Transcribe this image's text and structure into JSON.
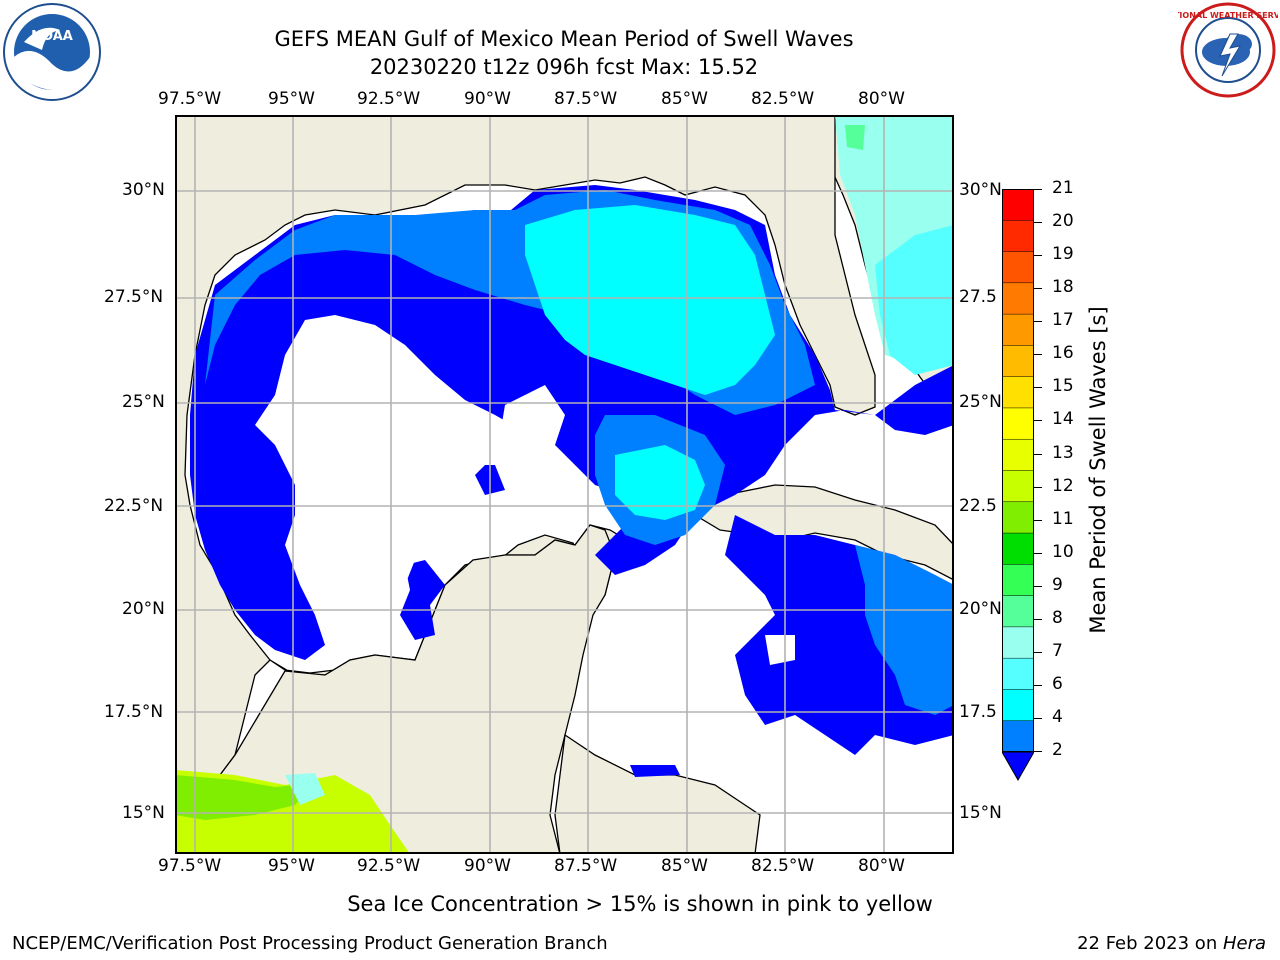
{
  "title": {
    "line1": "GEFS MEAN Gulf of Mexico Mean Period of Swell Waves",
    "line2": "20230220 t12z 096h fcst   Max: 15.52"
  },
  "map": {
    "lon_ticks": [
      "97.5°W",
      "95°W",
      "92.5°W",
      "90°W",
      "87.5°W",
      "85°W",
      "82.5°W",
      "80°W"
    ],
    "lat_ticks": [
      "30°N",
      "27.5°N",
      "25°N",
      "22.5°N",
      "20°N",
      "17.5°N",
      "15°N"
    ],
    "lat_ticks_right": [
      "30°N",
      "27.5",
      "25°N",
      "22.5",
      "20°N",
      "17.5",
      "15°N"
    ],
    "colors": {
      "land": "#efedde",
      "ocean": "#ffffff",
      "grid": "#b3b3b3"
    }
  },
  "colorbar": {
    "label": "Mean Period of Swell Waves [s]",
    "ticks": [
      "21",
      "20",
      "19",
      "18",
      "17",
      "16",
      "15",
      "14",
      "13",
      "12",
      "11",
      "10",
      "9",
      "8",
      "7",
      "6",
      "4",
      "2"
    ],
    "colors": [
      "#ff0000",
      "#ff2a00",
      "#ff5500",
      "#ff7a00",
      "#ff9900",
      "#ffbb00",
      "#ffe000",
      "#ffff00",
      "#e8ff00",
      "#c8ff00",
      "#80ee00",
      "#00dd00",
      "#33ff55",
      "#55ff99",
      "#99ffee",
      "#55ffff",
      "#00ffff",
      "#0080ff"
    ],
    "under_color": "#0000ff"
  },
  "notes": {
    "sea_ice": "Sea Ice Concentration > 15% is shown in pink to yellow"
  },
  "footer": {
    "left": "NCEP/EMC/Verification Post Processing Product Generation Branch",
    "date": "22 Feb 2023 on ",
    "machine": "Hera"
  },
  "logos": {
    "noaa_text": "NOAA",
    "nws_text": "NATIONAL WEATHER SERVICE"
  }
}
